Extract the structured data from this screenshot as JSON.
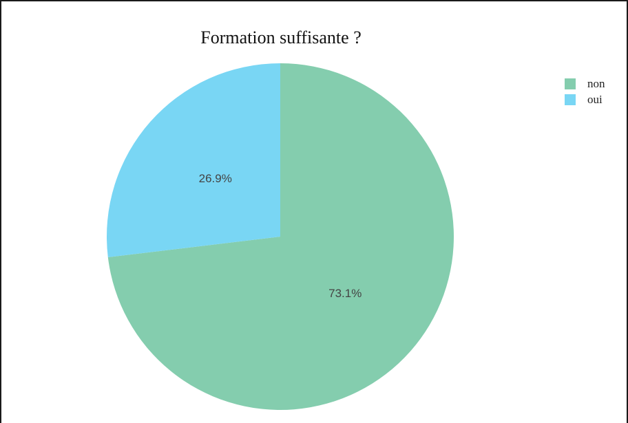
{
  "chart_data": {
    "type": "pie",
    "title": "Formation suffisante ?",
    "slices": [
      {
        "label": "non",
        "value": 73.1,
        "display": "73.1%",
        "color": "#84CDAE"
      },
      {
        "label": "oui",
        "value": 26.9,
        "display": "26.9%",
        "color": "#79D6F4"
      }
    ],
    "start_angle_deg": 0,
    "direction": "clockwise",
    "legend": {
      "position": "top-right",
      "items": [
        {
          "label": "non",
          "color": "#84CDAE"
        },
        {
          "label": "oui",
          "color": "#79D6F4"
        }
      ]
    }
  }
}
